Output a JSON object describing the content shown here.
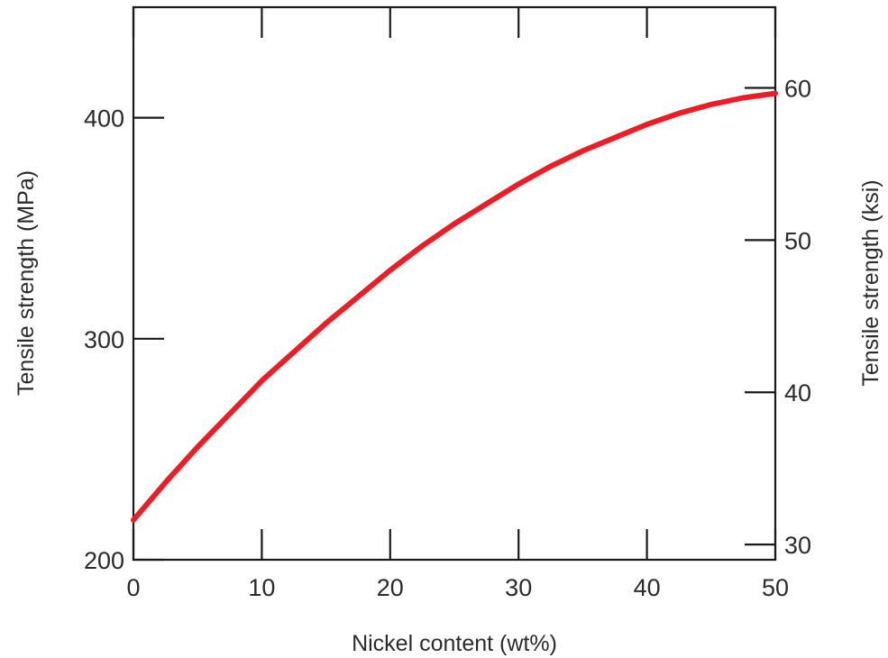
{
  "chart_data": {
    "type": "line",
    "xlabel": "Nickel content (wt%)",
    "ylabel": "Tensile strength (MPa)",
    "ylabel_right": "Tensile strength (ksi)",
    "xlim": [
      0,
      50
    ],
    "ylim": [
      200,
      450
    ],
    "ylim_right_ksi": [
      29,
      65.3
    ],
    "x_ticks": [
      0,
      10,
      20,
      30,
      40,
      50
    ],
    "y_ticks": [
      200,
      300,
      400
    ],
    "y_ticks_right": [
      30,
      40,
      50,
      60
    ],
    "grid": false,
    "series": [
      {
        "color": "#ee1c24",
        "x": [
          0,
          2.5,
          5,
          7.5,
          10,
          12.5,
          15,
          17.5,
          20,
          22.5,
          25,
          27.5,
          30,
          32.5,
          35,
          37.5,
          40,
          42.5,
          45,
          47.5,
          50
        ],
        "y": [
          218,
          235,
          251,
          266,
          281,
          294,
          307,
          319,
          331,
          342,
          352,
          361,
          370,
          378,
          385,
          391,
          397,
          402,
          406,
          409,
          411
        ]
      }
    ]
  }
}
